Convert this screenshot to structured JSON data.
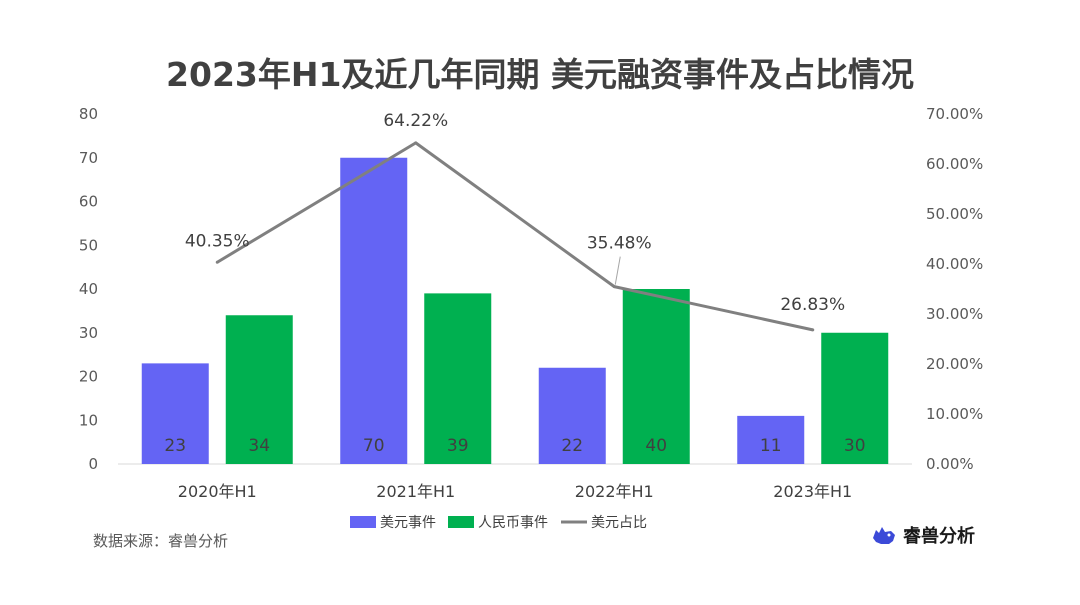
{
  "chart_data": {
    "type": "bar",
    "title": "2023年H1及近几年同期 美元融资事件及占比情况",
    "categories": [
      "2020年H1",
      "2021年H1",
      "2022年H1",
      "2023年H1"
    ],
    "series": [
      {
        "name": "美元事件",
        "type": "bar",
        "axis": "left",
        "values": [
          23,
          70,
          22,
          11
        ],
        "labels": [
          "23",
          "70",
          "22",
          "11"
        ],
        "color": "#6464f4"
      },
      {
        "name": "人民币事件",
        "type": "bar",
        "axis": "left",
        "values": [
          34,
          39,
          40,
          30
        ],
        "labels": [
          "34",
          "39",
          "40",
          "30"
        ],
        "color": "#00b050"
      },
      {
        "name": "美元占比",
        "type": "line",
        "axis": "right",
        "values": [
          40.35,
          64.22,
          35.48,
          26.83
        ],
        "labels": [
          "40.35%",
          "64.22%",
          "35.48%",
          "26.83%"
        ],
        "color": "#808080"
      }
    ],
    "yaxis_left": {
      "min": 0,
      "max": 80,
      "step": 10,
      "ticks": [
        "0",
        "10",
        "20",
        "30",
        "40",
        "50",
        "60",
        "70",
        "80"
      ]
    },
    "yaxis_right": {
      "min": 0,
      "max": 70,
      "step": 10,
      "ticks": [
        "0.00%",
        "10.00%",
        "20.00%",
        "30.00%",
        "40.00%",
        "50.00%",
        "60.00%",
        "70.00%"
      ]
    },
    "legend_position": "bottom",
    "grid": false
  },
  "footer": {
    "source": "数据来源：睿兽分析",
    "brand": "睿兽分析",
    "brand_icon": "rhino-logo-icon",
    "brand_color": "#3c4ad8"
  }
}
